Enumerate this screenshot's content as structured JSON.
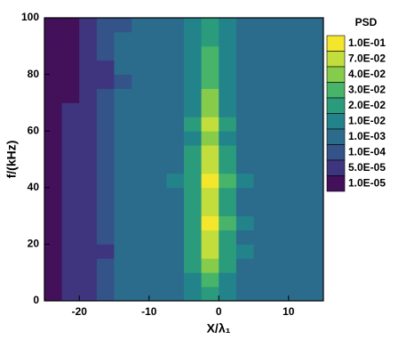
{
  "chart_data": {
    "type": "contour",
    "xlabel": "X/λ₁",
    "ylabel": "f/(kHz)",
    "legend_title": "PSD",
    "xlim": [
      -25,
      15
    ],
    "ylim": [
      0,
      100
    ],
    "xticks": [
      -20,
      -10,
      0,
      10
    ],
    "yticks": [
      0,
      20,
      40,
      60,
      80,
      100
    ],
    "x": [
      -25,
      -22.5,
      -20,
      -17.5,
      -15,
      -12.5,
      -10,
      -7.5,
      -5,
      -2.5,
      0,
      2.5,
      5,
      7.5,
      10,
      12.5,
      15
    ],
    "y": [
      0,
      5,
      10,
      15,
      20,
      25,
      30,
      35,
      40,
      45,
      50,
      55,
      60,
      65,
      70,
      75,
      80,
      85,
      90,
      95,
      100
    ],
    "levels": [
      {
        "value": 0.1,
        "label": "1.0E-01",
        "color": "#f4e62c"
      },
      {
        "value": 0.07,
        "label": "7.0E-02",
        "color": "#c2de3c"
      },
      {
        "value": 0.04,
        "label": "4.0E-02",
        "color": "#86cc4a"
      },
      {
        "value": 0.03,
        "label": "3.0E-02",
        "color": "#47b46a"
      },
      {
        "value": 0.02,
        "label": "2.0E-02",
        "color": "#2a9c7c"
      },
      {
        "value": 0.01,
        "label": "1.0E-02",
        "color": "#23838b"
      },
      {
        "value": 0.001,
        "label": "1.0E-03",
        "color": "#2b6c8d"
      },
      {
        "value": 0.0001,
        "label": "1.0E-04",
        "color": "#345389"
      },
      {
        "value": 5e-05,
        "label": "5.0E-05",
        "color": "#3f357e"
      },
      {
        "value": 1e-05,
        "label": "1.0E-05",
        "color": "#43105a"
      }
    ],
    "z": [
      [
        1e-05,
        5e-05,
        5e-05,
        0.0001,
        0.001,
        0.001,
        0.001,
        0.001,
        0.01,
        0.02,
        0.01,
        0.001,
        0.001,
        0.001,
        0.001,
        0.001
      ],
      [
        1e-05,
        5e-05,
        5e-05,
        0.0001,
        0.001,
        0.001,
        0.001,
        0.001,
        0.01,
        0.03,
        0.01,
        0.001,
        0.001,
        0.001,
        0.001,
        0.001
      ],
      [
        1e-05,
        5e-05,
        5e-05,
        0.0001,
        0.001,
        0.001,
        0.001,
        0.001,
        0.02,
        0.04,
        0.02,
        0.001,
        0.001,
        0.001,
        0.001,
        0.001
      ],
      [
        1e-05,
        5e-05,
        5e-05,
        5e-05,
        0.001,
        0.001,
        0.001,
        0.001,
        0.02,
        0.07,
        0.02,
        0.01,
        0.001,
        0.001,
        0.001,
        0.001
      ],
      [
        1e-05,
        5e-05,
        5e-05,
        0.0001,
        0.001,
        0.001,
        0.001,
        0.001,
        0.02,
        0.07,
        0.02,
        0.001,
        0.001,
        0.001,
        0.001,
        0.001
      ],
      [
        1e-05,
        5e-05,
        5e-05,
        0.0001,
        0.001,
        0.001,
        0.001,
        0.001,
        0.02,
        0.1,
        0.03,
        0.01,
        0.001,
        0.001,
        0.001,
        0.001
      ],
      [
        1e-05,
        5e-05,
        5e-05,
        0.0001,
        0.001,
        0.001,
        0.001,
        0.001,
        0.02,
        0.07,
        0.02,
        0.001,
        0.001,
        0.001,
        0.001,
        0.001
      ],
      [
        1e-05,
        5e-05,
        5e-05,
        0.0001,
        0.001,
        0.001,
        0.001,
        0.001,
        0.02,
        0.07,
        0.02,
        0.001,
        0.001,
        0.001,
        0.001,
        0.001
      ],
      [
        1e-05,
        5e-05,
        5e-05,
        0.0001,
        0.001,
        0.001,
        0.001,
        0.01,
        0.02,
        0.1,
        0.03,
        0.01,
        0.001,
        0.001,
        0.001,
        0.001
      ],
      [
        1e-05,
        5e-05,
        5e-05,
        0.0001,
        0.001,
        0.001,
        0.001,
        0.001,
        0.02,
        0.07,
        0.02,
        0.001,
        0.001,
        0.001,
        0.001,
        0.001
      ],
      [
        1e-05,
        5e-05,
        5e-05,
        0.0001,
        0.001,
        0.001,
        0.001,
        0.001,
        0.02,
        0.07,
        0.02,
        0.001,
        0.001,
        0.001,
        0.001,
        0.001
      ],
      [
        1e-05,
        5e-05,
        5e-05,
        0.0001,
        0.001,
        0.001,
        0.001,
        0.001,
        0.01,
        0.04,
        0.01,
        0.001,
        0.001,
        0.001,
        0.001,
        0.001
      ],
      [
        1e-05,
        5e-05,
        5e-05,
        0.0001,
        0.001,
        0.001,
        0.001,
        0.001,
        0.02,
        0.07,
        0.02,
        0.001,
        0.001,
        0.001,
        0.001,
        0.001
      ],
      [
        1e-05,
        5e-05,
        5e-05,
        0.0001,
        0.001,
        0.001,
        0.001,
        0.001,
        0.01,
        0.04,
        0.01,
        0.001,
        0.001,
        0.001,
        0.001,
        0.001
      ],
      [
        1e-05,
        1e-05,
        5e-05,
        0.0001,
        0.001,
        0.001,
        0.001,
        0.001,
        0.01,
        0.04,
        0.01,
        0.001,
        0.001,
        0.001,
        0.001,
        0.001
      ],
      [
        1e-05,
        1e-05,
        5e-05,
        5e-05,
        0.0001,
        0.001,
        0.001,
        0.001,
        0.01,
        0.03,
        0.01,
        0.001,
        0.001,
        0.001,
        0.001,
        0.001
      ],
      [
        1e-05,
        1e-05,
        5e-05,
        5e-05,
        0.001,
        0.001,
        0.001,
        0.001,
        0.01,
        0.03,
        0.01,
        0.001,
        0.001,
        0.001,
        0.001,
        0.001
      ],
      [
        1e-05,
        1e-05,
        5e-05,
        0.0001,
        0.001,
        0.001,
        0.001,
        0.001,
        0.01,
        0.03,
        0.01,
        0.001,
        0.001,
        0.001,
        0.001,
        0.001
      ],
      [
        1e-05,
        1e-05,
        5e-05,
        0.0001,
        0.001,
        0.001,
        0.001,
        0.001,
        0.01,
        0.02,
        0.01,
        0.001,
        0.001,
        0.001,
        0.001,
        0.001
      ],
      [
        1e-05,
        1e-05,
        5e-05,
        0.0001,
        0.0001,
        0.001,
        0.001,
        0.001,
        0.01,
        0.02,
        0.01,
        0.001,
        0.001,
        0.001,
        0.001,
        0.001
      ]
    ]
  }
}
